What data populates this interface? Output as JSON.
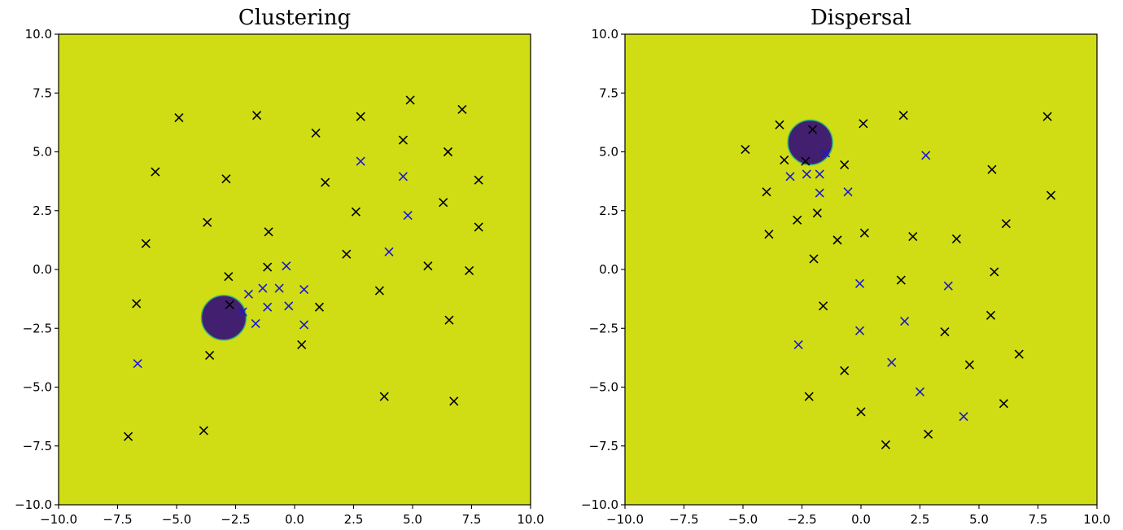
{
  "figure": {
    "background": "#ffffff",
    "plot_bg": "#d1dd14",
    "region_fill": "#43206f",
    "region_edge": "#35b779",
    "marker_black": "#000000",
    "marker_blue": "#1a1acc"
  },
  "chart_data": [
    {
      "type": "scatter",
      "title": "Clustering",
      "xlabel": "",
      "ylabel": "",
      "xlim": [
        -10,
        10
      ],
      "ylim": [
        -10,
        10
      ],
      "xticks": [
        "−10.0",
        "−7.5",
        "−5.0",
        "−2.5",
        "0.0",
        "2.5",
        "5.0",
        "7.5",
        "10.0"
      ],
      "yticks": [
        "−10.0",
        "−7.5",
        "−5.0",
        "−2.5",
        "0.0",
        "2.5",
        "5.0",
        "7.5",
        "10.0"
      ],
      "grid": false,
      "region": {
        "shape": "circle",
        "center": [
          -3.0,
          -2.05
        ],
        "radius": 0.95
      },
      "black_points": [
        [
          -4.9,
          6.45
        ],
        [
          -1.6,
          6.55
        ],
        [
          0.9,
          5.8
        ],
        [
          2.8,
          6.5
        ],
        [
          4.9,
          7.2
        ],
        [
          7.1,
          6.8
        ],
        [
          4.6,
          5.5
        ],
        [
          6.5,
          5.0
        ],
        [
          -5.9,
          4.15
        ],
        [
          -2.9,
          3.85
        ],
        [
          1.3,
          3.7
        ],
        [
          7.8,
          3.8
        ],
        [
          6.3,
          2.85
        ],
        [
          -3.7,
          2.0
        ],
        [
          2.6,
          2.45
        ],
        [
          -1.1,
          1.6
        ],
        [
          7.8,
          1.8
        ],
        [
          -6.3,
          1.1
        ],
        [
          2.2,
          0.65
        ],
        [
          -1.15,
          0.1
        ],
        [
          5.65,
          0.15
        ],
        [
          7.4,
          -0.05
        ],
        [
          -2.8,
          -0.3
        ],
        [
          3.6,
          -0.9
        ],
        [
          -6.7,
          -1.45
        ],
        [
          -2.75,
          -1.5
        ],
        [
          1.05,
          -1.6
        ],
        [
          6.55,
          -2.15
        ],
        [
          0.3,
          -3.2
        ],
        [
          -3.6,
          -3.65
        ],
        [
          3.8,
          -5.4
        ],
        [
          6.75,
          -5.6
        ],
        [
          -3.85,
          -6.85
        ],
        [
          -7.05,
          -7.1
        ]
      ],
      "blue_points": [
        [
          2.8,
          4.6
        ],
        [
          4.6,
          3.95
        ],
        [
          4.8,
          2.3
        ],
        [
          4.0,
          0.75
        ],
        [
          -0.35,
          0.15
        ],
        [
          -1.35,
          -0.8
        ],
        [
          -0.65,
          -0.8
        ],
        [
          0.4,
          -0.85
        ],
        [
          -1.95,
          -1.05
        ],
        [
          -1.15,
          -1.6
        ],
        [
          -0.25,
          -1.55
        ],
        [
          -2.2,
          -1.8
        ],
        [
          -1.65,
          -2.3
        ],
        [
          0.4,
          -2.35
        ],
        [
          -6.65,
          -4.0
        ]
      ]
    },
    {
      "type": "scatter",
      "title": "Dispersal",
      "xlabel": "",
      "ylabel": "",
      "xlim": [
        -10,
        10
      ],
      "ylim": [
        -10,
        10
      ],
      "xticks": [
        "−10.0",
        "−7.5",
        "−5.0",
        "−2.5",
        "0.0",
        "2.5",
        "5.0",
        "7.5",
        "10.0"
      ],
      "yticks": [
        "−10.0",
        "−7.5",
        "−5.0",
        "−2.5",
        "0.0",
        "2.5",
        "5.0",
        "7.5",
        "10.0"
      ],
      "grid": false,
      "region": {
        "shape": "circle",
        "center": [
          -2.15,
          5.4
        ],
        "radius": 0.95
      },
      "black_points": [
        [
          -3.45,
          6.15
        ],
        [
          -2.05,
          5.95
        ],
        [
          0.1,
          6.2
        ],
        [
          1.8,
          6.55
        ],
        [
          7.9,
          6.5
        ],
        [
          -4.9,
          5.1
        ],
        [
          -3.25,
          4.65
        ],
        [
          -2.35,
          4.6
        ],
        [
          -0.7,
          4.45
        ],
        [
          5.55,
          4.25
        ],
        [
          8.05,
          3.15
        ],
        [
          -4.0,
          3.3
        ],
        [
          -2.7,
          2.1
        ],
        [
          -1.85,
          2.4
        ],
        [
          6.15,
          1.95
        ],
        [
          -3.9,
          1.5
        ],
        [
          -1.0,
          1.25
        ],
        [
          0.15,
          1.55
        ],
        [
          2.2,
          1.4
        ],
        [
          4.05,
          1.3
        ],
        [
          -2.0,
          0.45
        ],
        [
          5.65,
          -0.1
        ],
        [
          1.7,
          -0.45
        ],
        [
          -1.6,
          -1.55
        ],
        [
          5.5,
          -1.95
        ],
        [
          3.55,
          -2.65
        ],
        [
          6.7,
          -3.6
        ],
        [
          -0.7,
          -4.3
        ],
        [
          4.6,
          -4.05
        ],
        [
          -2.2,
          -5.4
        ],
        [
          6.05,
          -5.7
        ],
        [
          0.0,
          -6.05
        ],
        [
          2.85,
          -7.0
        ],
        [
          1.05,
          -7.45
        ]
      ],
      "blue_points": [
        [
          -1.5,
          4.95
        ],
        [
          2.75,
          4.85
        ],
        [
          -3.0,
          3.95
        ],
        [
          -2.3,
          4.05
        ],
        [
          -1.75,
          4.05
        ],
        [
          -1.75,
          3.25
        ],
        [
          -0.55,
          3.3
        ],
        [
          -0.05,
          -0.6
        ],
        [
          3.7,
          -0.7
        ],
        [
          -0.05,
          -2.6
        ],
        [
          1.85,
          -2.2
        ],
        [
          -2.65,
          -3.2
        ],
        [
          1.3,
          -3.95
        ],
        [
          2.5,
          -5.2
        ],
        [
          4.35,
          -6.25
        ]
      ]
    }
  ]
}
